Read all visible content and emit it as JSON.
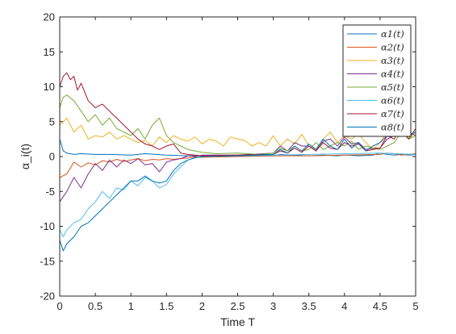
{
  "chart_data": {
    "type": "line",
    "xlabel": "Time T",
    "ylabel": "α_i(t)",
    "xlim": [
      0,
      5
    ],
    "ylim": [
      -20,
      20
    ],
    "xticks": [
      "0",
      "0.5",
      "1",
      "1.5",
      "2",
      "2.5",
      "3",
      "3.5",
      "4",
      "4.5",
      "5"
    ],
    "yticks": [
      "-20",
      "-15",
      "-10",
      "-5",
      "0",
      "5",
      "10",
      "15",
      "20"
    ],
    "legend_position": "top-right",
    "grid": false,
    "series": [
      {
        "name": "α1(t)",
        "color": "#0072BD",
        "x": [
          0,
          0.05,
          0.1,
          0.2,
          0.3,
          0.5,
          0.7,
          1.0,
          1.2,
          1.5,
          1.8,
          2.0,
          2.5,
          3.0,
          3.1,
          3.3,
          3.5,
          3.7,
          3.9,
          4.0,
          4.2,
          4.4,
          4.5,
          4.6,
          4.7,
          4.8,
          4.9,
          5.0
        ],
        "y": [
          2.5,
          0.8,
          0.5,
          0.3,
          0.4,
          0.3,
          0.3,
          0.2,
          0.4,
          0.2,
          0.1,
          0.1,
          0.1,
          0.1,
          0.3,
          0.2,
          0.1,
          0.2,
          0.1,
          0.2,
          0.1,
          0.2,
          0.5,
          0.3,
          0.2,
          0.3,
          0.2,
          0.3
        ]
      },
      {
        "name": "α2(t)",
        "color": "#D95319",
        "x": [
          0,
          0.1,
          0.2,
          0.3,
          0.4,
          0.5,
          0.6,
          0.7,
          0.8,
          0.9,
          1.0,
          1.1,
          1.2,
          1.3,
          1.4,
          1.5,
          1.6,
          1.7,
          1.8,
          1.9,
          2.0,
          2.5,
          3.0,
          3.5,
          4.0,
          4.5,
          4.6,
          4.7,
          4.8,
          4.9,
          5.0
        ],
        "y": [
          -3,
          -2.5,
          -0.8,
          -1.5,
          -0.9,
          -1.2,
          -0.6,
          -0.8,
          -0.4,
          -0.7,
          -0.5,
          -0.3,
          -0.6,
          -0.4,
          -0.5,
          -0.3,
          -0.4,
          -0.3,
          -0.2,
          -0.1,
          -0.1,
          0,
          0.1,
          0.1,
          0.2,
          0.3,
          0.5,
          0.4,
          0.2,
          0.3,
          0.4
        ]
      },
      {
        "name": "α3(t)",
        "color": "#EDB120",
        "x": [
          0,
          0.1,
          0.2,
          0.3,
          0.4,
          0.5,
          0.6,
          0.7,
          0.8,
          0.9,
          1.0,
          1.1,
          1.2,
          1.3,
          1.4,
          1.5,
          1.6,
          1.7,
          1.8,
          1.9,
          2.0,
          2.1,
          2.2,
          2.3,
          2.4,
          2.5,
          2.6,
          2.7,
          2.8,
          2.9,
          3.0,
          3.1,
          3.2,
          3.3,
          3.4,
          3.5,
          3.6,
          3.7,
          3.8,
          3.9,
          4.0,
          4.1,
          4.2,
          4.3,
          4.4,
          4.5,
          4.6,
          4.7,
          4.8,
          4.9,
          5.0
        ],
        "y": [
          4.5,
          5.5,
          3.5,
          4.5,
          2.5,
          3.0,
          2.8,
          3.5,
          2.5,
          3.0,
          2.5,
          2.0,
          2.3,
          1.5,
          2.8,
          2.0,
          3.0,
          2.5,
          2.2,
          2.8,
          1.8,
          2.5,
          2.2,
          1.5,
          2.8,
          2.5,
          2.3,
          1.5,
          2.0,
          1.5,
          3.0,
          1.5,
          2.5,
          1.8,
          3.2,
          1.5,
          1.0,
          2.5,
          3.5,
          2.0,
          3.0,
          2.5,
          3.2,
          2.0,
          1.0,
          2.0,
          3.5,
          3.0,
          4.0,
          2.5,
          3.5
        ]
      },
      {
        "name": "α4(t)",
        "color": "#7E2F8E",
        "x": [
          0,
          0.1,
          0.2,
          0.3,
          0.4,
          0.5,
          0.6,
          0.7,
          0.8,
          0.9,
          1.0,
          1.1,
          1.2,
          1.3,
          1.4,
          1.5,
          1.6,
          1.7,
          1.8,
          1.9,
          2.0,
          2.5,
          3.0,
          3.1,
          3.2,
          3.3,
          3.4,
          3.5,
          3.6,
          3.7,
          3.8,
          3.9,
          4.0,
          4.1,
          4.2,
          4.3,
          4.4,
          4.5,
          4.6,
          4.7,
          4.8,
          4.9,
          5.0
        ],
        "y": [
          -6.5,
          -5.0,
          -3.0,
          -4.5,
          -2.5,
          -1.0,
          -2.0,
          -0.5,
          -1.5,
          -0.5,
          -1.0,
          -0.3,
          -1.2,
          -1.0,
          -2.2,
          -0.8,
          -0.5,
          -0.3,
          0.1,
          0.0,
          0.2,
          0.2,
          0.5,
          1.5,
          0.8,
          2.0,
          1.5,
          1.5,
          0.8,
          2.2,
          2.5,
          1.5,
          2.8,
          1.8,
          2.0,
          1.0,
          1.2,
          1.2,
          2.5,
          3.0,
          4.0,
          3.5,
          3.0
        ]
      },
      {
        "name": "α5(t)",
        "color": "#77AC30",
        "x": [
          0,
          0.05,
          0.1,
          0.2,
          0.3,
          0.4,
          0.5,
          0.6,
          0.7,
          0.8,
          0.9,
          1.0,
          1.1,
          1.2,
          1.3,
          1.4,
          1.5,
          1.6,
          1.7,
          1.8,
          1.9,
          2.0,
          2.2,
          2.5,
          2.8,
          3.0,
          3.1,
          3.2,
          3.3,
          3.4,
          3.5,
          3.6,
          3.7,
          3.8,
          3.9,
          4.0,
          4.1,
          4.2,
          4.3,
          4.4,
          4.5,
          4.6,
          4.7,
          4.8,
          4.9,
          5.0
        ],
        "y": [
          7,
          8.5,
          8.8,
          8.0,
          6.5,
          5.0,
          6.0,
          4.5,
          5.5,
          4.0,
          3.5,
          3.0,
          4.0,
          2.5,
          4.5,
          5.5,
          3.0,
          2.0,
          1.5,
          1.0,
          0.8,
          0.6,
          0.4,
          0.5,
          0.3,
          0.5,
          1.2,
          0.8,
          1.5,
          0.8,
          1.0,
          2.0,
          1.0,
          1.5,
          2.0,
          1.5,
          2.2,
          1.0,
          1.5,
          1.2,
          1.0,
          1.5,
          2.0,
          3.5,
          2.5,
          3.0
        ]
      },
      {
        "name": "α6(t)",
        "color": "#4DBEEE",
        "x": [
          0,
          0.05,
          0.1,
          0.2,
          0.3,
          0.4,
          0.5,
          0.6,
          0.7,
          0.8,
          0.9,
          1.0,
          1.1,
          1.2,
          1.3,
          1.4,
          1.5,
          1.6,
          1.7,
          1.8,
          1.9,
          2.0,
          2.5,
          3.0,
          3.5,
          4.0,
          4.5,
          5.0
        ],
        "y": [
          -10.5,
          -11.5,
          -10.5,
          -9.5,
          -9.0,
          -7.5,
          -6.5,
          -5.0,
          -6.0,
          -4.5,
          -4.8,
          -3.5,
          -4.2,
          -3.0,
          -3.5,
          -4.5,
          -4.0,
          -2.5,
          -1.5,
          -0.5,
          -0.2,
          0.0,
          0.1,
          0.2,
          0.3,
          0.4,
          0.5,
          0.3
        ]
      },
      {
        "name": "α7(t)",
        "color": "#A2142F",
        "x": [
          0,
          0.05,
          0.1,
          0.15,
          0.2,
          0.25,
          0.3,
          0.4,
          0.5,
          0.6,
          0.7,
          0.8,
          0.9,
          1.0,
          1.1,
          1.2,
          1.3,
          1.4,
          1.5,
          1.6,
          1.7,
          1.8,
          1.9,
          2.0,
          2.5,
          3.0,
          3.1,
          3.2,
          3.3,
          3.4,
          3.5,
          3.6,
          3.7,
          3.8,
          3.9,
          4.0,
          4.1,
          4.2,
          4.3,
          4.4,
          4.5,
          4.6,
          4.7,
          4.8,
          4.9,
          5.0
        ],
        "y": [
          10,
          11.5,
          12.0,
          11.0,
          11.5,
          9.5,
          10.5,
          8.0,
          7.0,
          7.5,
          6.5,
          5.5,
          4.5,
          3.5,
          2.5,
          1.8,
          1.5,
          1.0,
          1.5,
          1.8,
          0.5,
          0.3,
          0.2,
          0.1,
          0.2,
          0.3,
          0.8,
          0.5,
          1.2,
          0.6,
          1.5,
          0.8,
          2.0,
          1.2,
          1.0,
          2.0,
          1.5,
          1.8,
          0.8,
          1.0,
          1.2,
          3.0,
          2.5,
          4.5,
          2.5,
          4.0
        ]
      },
      {
        "name": "α8(t)",
        "color": "#0072BD",
        "x": [
          0,
          0.05,
          0.1,
          0.2,
          0.3,
          0.4,
          0.5,
          0.6,
          0.7,
          0.8,
          0.9,
          1.0,
          1.1,
          1.2,
          1.3,
          1.4,
          1.5,
          1.6,
          1.7,
          1.8,
          1.9,
          2.0,
          2.5,
          3.0,
          3.1,
          3.2,
          3.3,
          3.4,
          3.5,
          3.6,
          3.7,
          3.8,
          3.9,
          4.0,
          4.1,
          4.2,
          4.3,
          4.4,
          4.5,
          4.6,
          4.7,
          4.8,
          4.9,
          5.0
        ],
        "y": [
          -12,
          -13.5,
          -12.5,
          -11.5,
          -10.0,
          -9.5,
          -8.5,
          -7.5,
          -6.5,
          -5.5,
          -4.5,
          -3.5,
          -3.5,
          -2.8,
          -3.5,
          -3.8,
          -3.5,
          -2.0,
          -1.0,
          -0.5,
          -0.2,
          0.0,
          0.1,
          0.3,
          1.0,
          0.5,
          1.5,
          0.8,
          1.8,
          1.0,
          2.5,
          1.5,
          1.0,
          2.5,
          1.2,
          2.0,
          0.8,
          1.5,
          2.0,
          3.0,
          3.5,
          4.0,
          3.0,
          3.5
        ]
      }
    ]
  }
}
